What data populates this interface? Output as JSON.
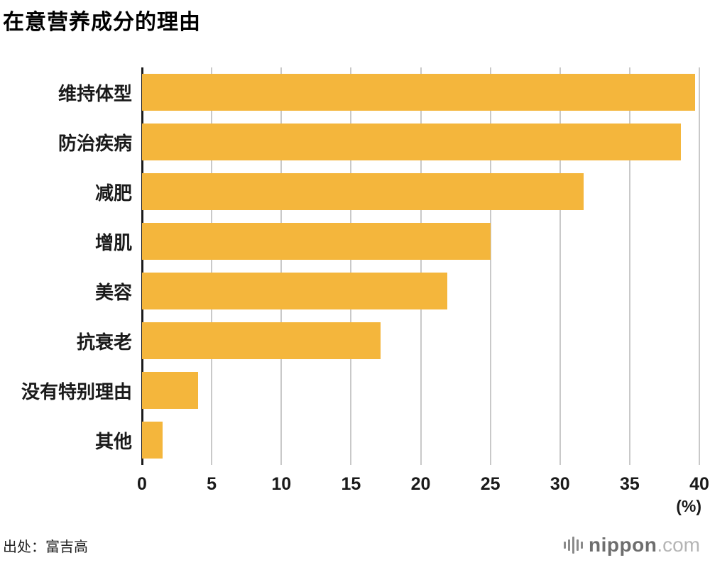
{
  "title": "在意营养成分的理由",
  "source": "出处：富吉高",
  "logo": {
    "name": "nippon",
    "suffix": ".com"
  },
  "chart_data": {
    "type": "bar",
    "orientation": "horizontal",
    "title": "在意营养成分的理由",
    "categories": [
      "维持体型",
      "防治疾病",
      "减肥",
      "增肌",
      "美容",
      "抗衰老",
      "没有特别理由",
      "其他"
    ],
    "values": [
      39.7,
      38.7,
      31.7,
      25.0,
      21.9,
      17.1,
      4.0,
      1.5
    ],
    "xlim": [
      0,
      40
    ],
    "xticks": [
      0,
      5,
      10,
      15,
      20,
      25,
      30,
      35,
      40
    ],
    "unit_label": "(%)",
    "bar_color": "#F4B63C",
    "grid": true,
    "legend_position": "none"
  }
}
